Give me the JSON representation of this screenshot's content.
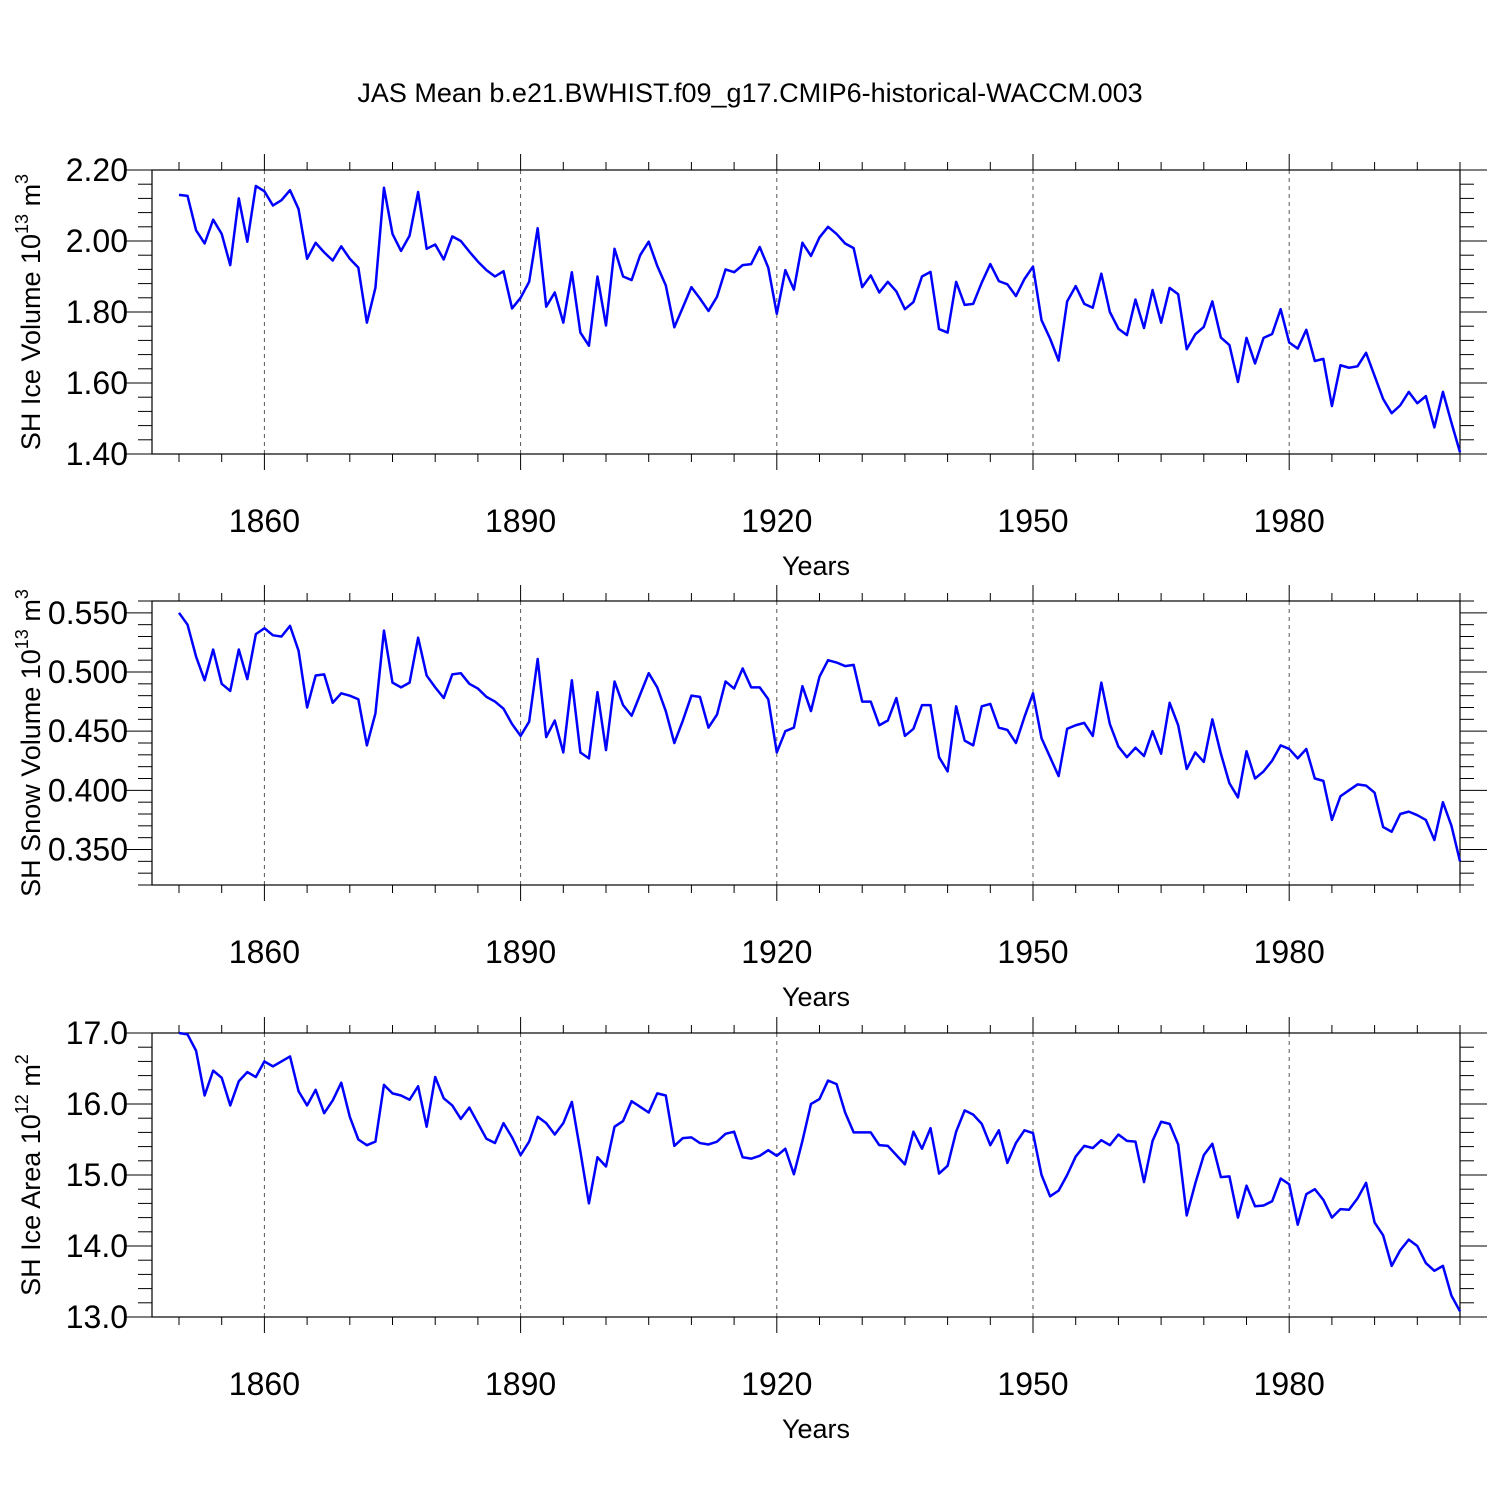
{
  "title": "JAS Mean b.e21.BWHIST.f09_g17.CMIP6-historical-WACCM.003",
  "colors": {
    "line": "#0000ff",
    "axis": "#000000",
    "grid": "#555555"
  },
  "chart_data": [
    {
      "type": "line",
      "name": "ice-volume",
      "xlabel": "Years",
      "ylabel_main": "SH Ice Volume 10",
      "ylabel_exp": "13",
      "ylabel_unit": " m",
      "ylabel_unit_exp": "3",
      "xlim": [
        1850,
        2000
      ],
      "ylim": [
        1.4,
        2.2
      ],
      "yticks": [
        1.4,
        1.6,
        1.8,
        2.0,
        2.2
      ],
      "ytick_labels": [
        "1.40",
        "1.60",
        "1.80",
        "2.00",
        "2.20"
      ],
      "yminor": 0.04,
      "xticks": [
        1860,
        1890,
        1920,
        1950,
        1980
      ],
      "xtick_labels": [
        "1860",
        "1890",
        "1920",
        "1950",
        "1980"
      ],
      "x_start": 1850,
      "values": [
        2.13,
        2.127,
        2.03,
        1.993,
        2.06,
        2.02,
        1.932,
        2.12,
        1.998,
        2.155,
        2.14,
        2.1,
        2.115,
        2.143,
        2.09,
        1.95,
        1.995,
        1.968,
        1.945,
        1.985,
        1.95,
        1.925,
        1.77,
        1.868,
        2.15,
        2.02,
        1.972,
        2.015,
        2.138,
        1.978,
        1.99,
        1.948,
        2.013,
        2.0,
        1.97,
        1.942,
        1.918,
        1.9,
        1.915,
        1.81,
        1.84,
        1.885,
        2.036,
        1.815,
        1.855,
        1.77,
        1.912,
        1.742,
        1.705,
        1.9,
        1.762,
        1.978,
        1.9,
        1.89,
        1.96,
        1.998,
        1.93,
        1.875,
        1.757,
        1.813,
        1.87,
        1.838,
        1.803,
        1.843,
        1.92,
        1.912,
        1.932,
        1.935,
        1.983,
        1.925,
        1.795,
        1.918,
        1.863,
        1.995,
        1.958,
        2.01,
        2.04,
        2.02,
        1.993,
        1.98,
        1.87,
        1.903,
        1.855,
        1.885,
        1.858,
        1.808,
        1.828,
        1.9,
        1.913,
        1.752,
        1.742,
        1.885,
        1.82,
        1.823,
        1.883,
        1.935,
        1.887,
        1.878,
        1.845,
        1.893,
        1.928,
        1.777,
        1.725,
        1.663,
        1.83,
        1.873,
        1.823,
        1.812,
        1.908,
        1.8,
        1.753,
        1.735,
        1.835,
        1.755,
        1.862,
        1.77,
        1.868,
        1.85,
        1.695,
        1.737,
        1.758,
        1.83,
        1.728,
        1.707,
        1.603,
        1.727,
        1.655,
        1.727,
        1.738,
        1.808,
        1.714,
        1.697,
        1.75,
        1.662,
        1.668,
        1.535,
        1.65,
        1.643,
        1.647,
        1.685,
        1.62,
        1.555,
        1.515,
        1.537,
        1.575,
        1.543,
        1.563,
        1.475,
        1.575,
        1.488,
        1.405
      ]
    },
    {
      "type": "line",
      "name": "snow-volume",
      "xlabel": "Years",
      "ylabel_main": "SH Snow Volume 10",
      "ylabel_exp": "13",
      "ylabel_unit": " m",
      "ylabel_unit_exp": "3",
      "xlim": [
        1850,
        2000
      ],
      "ylim": [
        0.32,
        0.56
      ],
      "yticks": [
        0.35,
        0.4,
        0.45,
        0.5,
        0.55
      ],
      "ytick_labels": [
        "0.350",
        "0.400",
        "0.450",
        "0.500",
        "0.550"
      ],
      "yminor": 0.01,
      "xticks": [
        1860,
        1890,
        1920,
        1950,
        1980
      ],
      "xtick_labels": [
        "1860",
        "1890",
        "1920",
        "1950",
        "1980"
      ],
      "x_start": 1850,
      "values": [
        0.55,
        0.54,
        0.513,
        0.493,
        0.519,
        0.49,
        0.484,
        0.519,
        0.494,
        0.532,
        0.537,
        0.531,
        0.53,
        0.539,
        0.518,
        0.47,
        0.497,
        0.498,
        0.474,
        0.482,
        0.48,
        0.477,
        0.438,
        0.465,
        0.535,
        0.491,
        0.487,
        0.491,
        0.529,
        0.497,
        0.487,
        0.478,
        0.498,
        0.499,
        0.49,
        0.486,
        0.479,
        0.475,
        0.469,
        0.456,
        0.446,
        0.458,
        0.511,
        0.445,
        0.459,
        0.432,
        0.493,
        0.432,
        0.427,
        0.483,
        0.434,
        0.492,
        0.472,
        0.463,
        0.481,
        0.499,
        0.487,
        0.467,
        0.44,
        0.459,
        0.48,
        0.479,
        0.453,
        0.464,
        0.492,
        0.486,
        0.503,
        0.487,
        0.487,
        0.477,
        0.432,
        0.45,
        0.453,
        0.488,
        0.467,
        0.496,
        0.51,
        0.508,
        0.505,
        0.506,
        0.475,
        0.475,
        0.455,
        0.459,
        0.478,
        0.446,
        0.452,
        0.472,
        0.472,
        0.428,
        0.416,
        0.471,
        0.442,
        0.438,
        0.471,
        0.473,
        0.453,
        0.451,
        0.44,
        0.462,
        0.482,
        0.444,
        0.428,
        0.412,
        0.452,
        0.455,
        0.457,
        0.446,
        0.491,
        0.456,
        0.437,
        0.428,
        0.436,
        0.429,
        0.45,
        0.431,
        0.474,
        0.455,
        0.418,
        0.432,
        0.424,
        0.46,
        0.431,
        0.406,
        0.394,
        0.433,
        0.41,
        0.416,
        0.425,
        0.438,
        0.435,
        0.427,
        0.435,
        0.41,
        0.408,
        0.375,
        0.395,
        0.4,
        0.405,
        0.404,
        0.398,
        0.369,
        0.365,
        0.38,
        0.382,
        0.379,
        0.375,
        0.358,
        0.39,
        0.37,
        0.34
      ]
    },
    {
      "type": "line",
      "name": "ice-area",
      "xlabel": "Years",
      "ylabel_main": "SH Ice Area 10",
      "ylabel_exp": "12",
      "ylabel_unit": " m",
      "ylabel_unit_exp": "2",
      "xlim": [
        1850,
        2000
      ],
      "ylim": [
        13.0,
        17.0
      ],
      "yticks": [
        13.0,
        14.0,
        15.0,
        16.0,
        17.0
      ],
      "ytick_labels": [
        "13.0",
        "14.0",
        "15.0",
        "16.0",
        "17.0"
      ],
      "yminor": 0.2,
      "xticks": [
        1860,
        1890,
        1920,
        1950,
        1980
      ],
      "xtick_labels": [
        "1860",
        "1890",
        "1920",
        "1950",
        "1980"
      ],
      "x_start": 1850,
      "values": [
        17.0,
        16.98,
        16.75,
        16.12,
        16.47,
        16.37,
        15.98,
        16.32,
        16.45,
        16.38,
        16.6,
        16.53,
        16.6,
        16.67,
        16.18,
        15.98,
        16.2,
        15.87,
        16.05,
        16.3,
        15.82,
        15.5,
        15.42,
        15.47,
        16.27,
        16.15,
        16.12,
        16.06,
        16.25,
        15.68,
        16.38,
        16.08,
        15.98,
        15.79,
        15.95,
        15.73,
        15.51,
        15.45,
        15.73,
        15.53,
        15.28,
        15.47,
        15.82,
        15.73,
        15.57,
        15.73,
        16.03,
        15.33,
        14.6,
        15.25,
        15.12,
        15.68,
        15.76,
        16.04,
        15.96,
        15.88,
        16.15,
        16.12,
        15.41,
        15.52,
        15.53,
        15.45,
        15.43,
        15.47,
        15.58,
        15.61,
        15.25,
        15.23,
        15.27,
        15.35,
        15.27,
        15.37,
        15.01,
        15.48,
        16.0,
        16.07,
        16.33,
        16.28,
        15.88,
        15.6,
        15.6,
        15.6,
        15.42,
        15.41,
        15.28,
        15.15,
        15.61,
        15.37,
        15.66,
        15.02,
        15.13,
        15.61,
        15.91,
        15.85,
        15.72,
        15.42,
        15.63,
        15.17,
        15.45,
        15.63,
        15.59,
        15.0,
        14.7,
        14.78,
        15.0,
        15.26,
        15.41,
        15.38,
        15.49,
        15.42,
        15.57,
        15.48,
        15.47,
        14.9,
        15.48,
        15.75,
        15.72,
        15.43,
        14.43,
        14.88,
        15.28,
        15.44,
        14.97,
        14.98,
        14.4,
        14.85,
        14.56,
        14.57,
        14.63,
        14.95,
        14.87,
        14.3,
        14.73,
        14.8,
        14.65,
        14.4,
        14.52,
        14.51,
        14.67,
        14.89,
        14.33,
        14.15,
        13.72,
        13.94,
        14.09,
        14.0,
        13.76,
        13.65,
        13.72,
        13.3,
        13.08
      ]
    }
  ]
}
